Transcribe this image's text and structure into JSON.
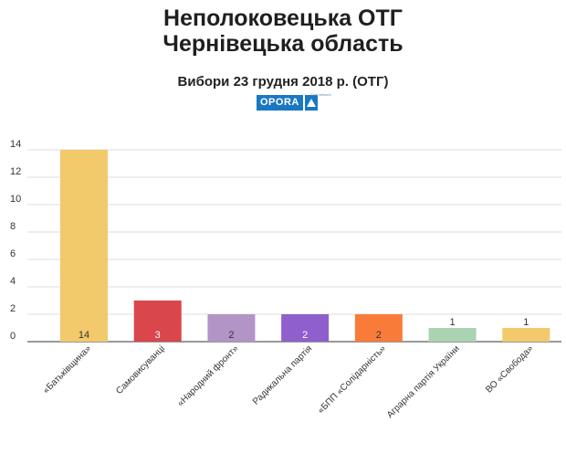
{
  "header": {
    "title_line1": "Неполоковецька ОТГ",
    "title_line2": "Чернівецька область",
    "subtitle": "Вибори 23 грудня 2018 р. (ОТГ)",
    "logo_text": "OPORA",
    "logo_tagline": "Civil network"
  },
  "chart_data": {
    "type": "bar",
    "categories": [
      "«Батьківщина»",
      "Самовисуванці",
      "«Народний фронт»",
      "Радикальна партія",
      "«БПП «Солідарність»",
      "Аграрна партія України",
      "ВО «Свобода»"
    ],
    "values": [
      14,
      3,
      2,
      2,
      2,
      1,
      1
    ],
    "colors": [
      "#f2c96b",
      "#d9464c",
      "#b294c7",
      "#8f5fcd",
      "#f97b3a",
      "#a9d3b1",
      "#f2c96b"
    ],
    "label_colors": [
      "#333333",
      "#ffffff",
      "#333333",
      "#ffffff",
      "#333333",
      "#333333",
      "#333333"
    ],
    "yticks": [
      0,
      2,
      4,
      6,
      8,
      10,
      12,
      14
    ],
    "ylim": [
      0,
      14
    ],
    "grid": true,
    "title": "Вибори 23 грудня 2018 р. (ОТГ)"
  }
}
